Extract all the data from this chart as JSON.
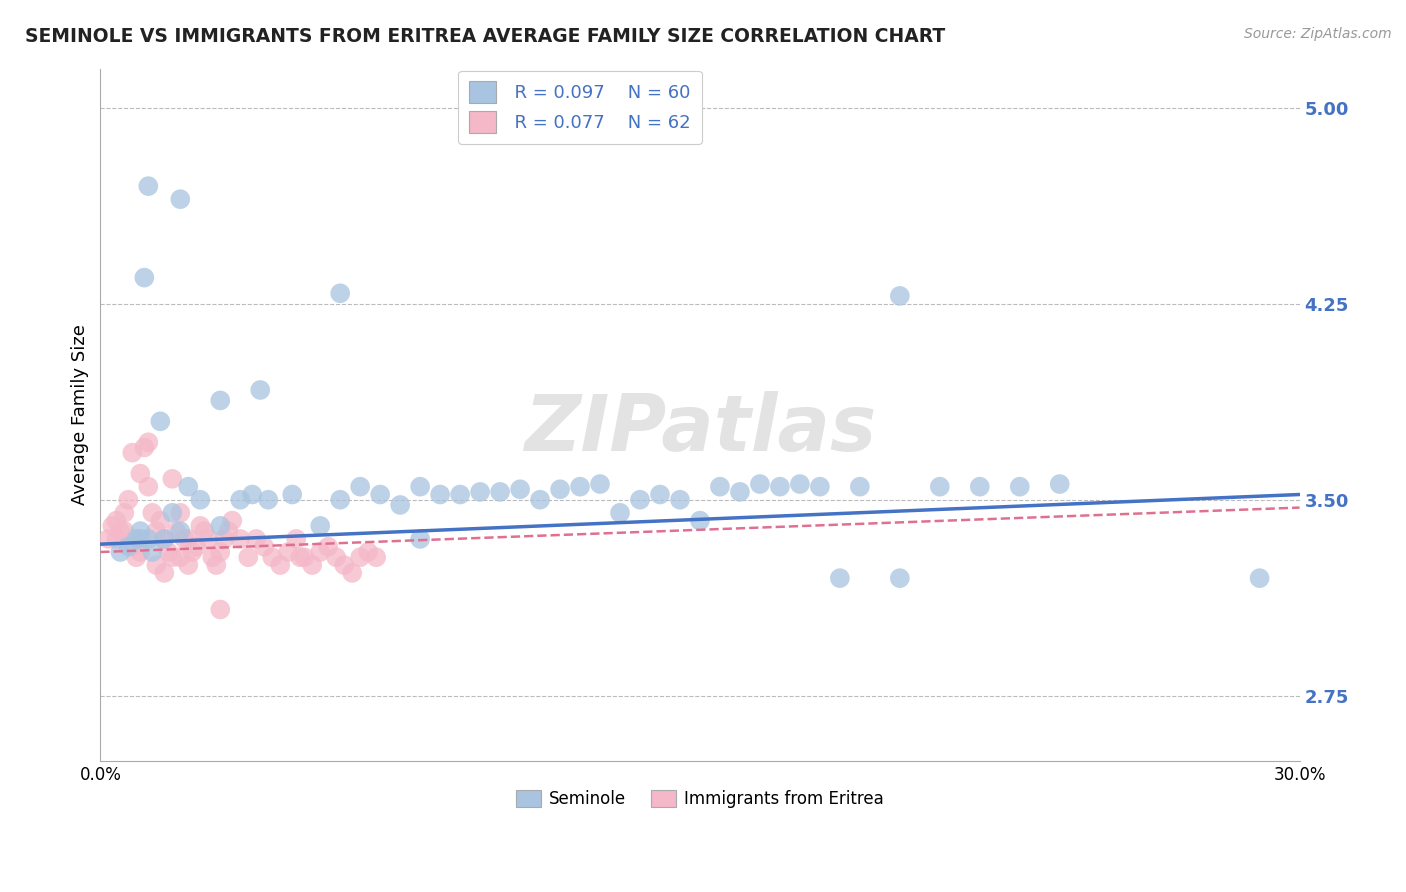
{
  "title": "SEMINOLE VS IMMIGRANTS FROM ERITREA AVERAGE FAMILY SIZE CORRELATION CHART",
  "source": "Source: ZipAtlas.com",
  "ylabel": "Average Family Size",
  "x_min": 0.0,
  "x_max": 0.3,
  "y_min": 2.5,
  "y_max": 5.15,
  "y_ticks": [
    2.75,
    3.5,
    4.25,
    5.0
  ],
  "seminole_color": "#a8c4e0",
  "eritrea_color": "#f4b8c8",
  "seminole_line_color": "#4472c4",
  "eritrea_line_color": "#e07090",
  "legend_r1": "R = 0.097",
  "legend_n1": "N = 60",
  "legend_r2": "R = 0.077",
  "legend_n2": "N = 62",
  "legend_label1": "Seminole",
  "legend_label2": "Immigrants from Eritrea",
  "watermark": "ZIPatlas",
  "seminole_x": [
    0.005,
    0.007,
    0.009,
    0.01,
    0.011,
    0.012,
    0.013,
    0.015,
    0.016,
    0.018,
    0.02,
    0.022,
    0.025,
    0.03,
    0.035,
    0.038,
    0.042,
    0.048,
    0.055,
    0.06,
    0.065,
    0.07,
    0.075,
    0.08,
    0.085,
    0.09,
    0.095,
    0.1,
    0.105,
    0.11,
    0.115,
    0.12,
    0.125,
    0.13,
    0.135,
    0.14,
    0.145,
    0.15,
    0.155,
    0.16,
    0.165,
    0.17,
    0.175,
    0.18,
    0.19,
    0.2,
    0.21,
    0.22,
    0.23,
    0.24,
    0.01,
    0.012,
    0.02,
    0.03,
    0.04,
    0.06,
    0.08,
    0.185,
    0.2,
    0.29
  ],
  "seminole_y": [
    3.3,
    3.32,
    3.35,
    3.38,
    4.35,
    3.35,
    3.3,
    3.8,
    3.35,
    3.45,
    3.38,
    3.55,
    3.5,
    3.4,
    3.5,
    3.52,
    3.5,
    3.52,
    3.4,
    3.5,
    3.55,
    3.52,
    3.48,
    3.55,
    3.52,
    3.52,
    3.53,
    3.53,
    3.54,
    3.5,
    3.54,
    3.55,
    3.56,
    3.45,
    3.5,
    3.52,
    3.5,
    3.42,
    3.55,
    3.53,
    3.56,
    3.55,
    3.56,
    3.55,
    3.55,
    3.2,
    3.55,
    3.55,
    3.55,
    3.56,
    3.35,
    4.7,
    4.65,
    3.88,
    3.92,
    4.29,
    3.35,
    3.2,
    4.28,
    3.2
  ],
  "eritrea_x": [
    0.002,
    0.003,
    0.004,
    0.005,
    0.006,
    0.007,
    0.008,
    0.009,
    0.01,
    0.011,
    0.012,
    0.013,
    0.014,
    0.015,
    0.016,
    0.017,
    0.018,
    0.019,
    0.02,
    0.021,
    0.022,
    0.023,
    0.024,
    0.025,
    0.026,
    0.027,
    0.028,
    0.029,
    0.03,
    0.031,
    0.032,
    0.033,
    0.035,
    0.037,
    0.039,
    0.041,
    0.043,
    0.045,
    0.047,
    0.049,
    0.051,
    0.053,
    0.055,
    0.057,
    0.059,
    0.061,
    0.063,
    0.065,
    0.067,
    0.069,
    0.004,
    0.006,
    0.008,
    0.01,
    0.012,
    0.014,
    0.016,
    0.018,
    0.02,
    0.022,
    0.03,
    0.05
  ],
  "eritrea_y": [
    3.35,
    3.4,
    3.42,
    3.38,
    3.45,
    3.5,
    3.32,
    3.28,
    3.6,
    3.7,
    3.55,
    3.45,
    3.38,
    3.42,
    3.35,
    3.3,
    3.28,
    3.38,
    3.45,
    3.35,
    3.25,
    3.3,
    3.32,
    3.4,
    3.38,
    3.35,
    3.28,
    3.25,
    3.3,
    3.35,
    3.38,
    3.42,
    3.35,
    3.28,
    3.35,
    3.32,
    3.28,
    3.25,
    3.3,
    3.35,
    3.28,
    3.25,
    3.3,
    3.32,
    3.28,
    3.25,
    3.22,
    3.28,
    3.3,
    3.28,
    3.35,
    3.38,
    3.68,
    3.3,
    3.72,
    3.25,
    3.22,
    3.58,
    3.28,
    3.35,
    3.08,
    3.28
  ],
  "sem_trend_x": [
    0.0,
    0.3
  ],
  "sem_trend_y": [
    3.33,
    3.52
  ],
  "eri_trend_x": [
    0.0,
    0.3
  ],
  "eri_trend_y": [
    3.3,
    3.47
  ]
}
